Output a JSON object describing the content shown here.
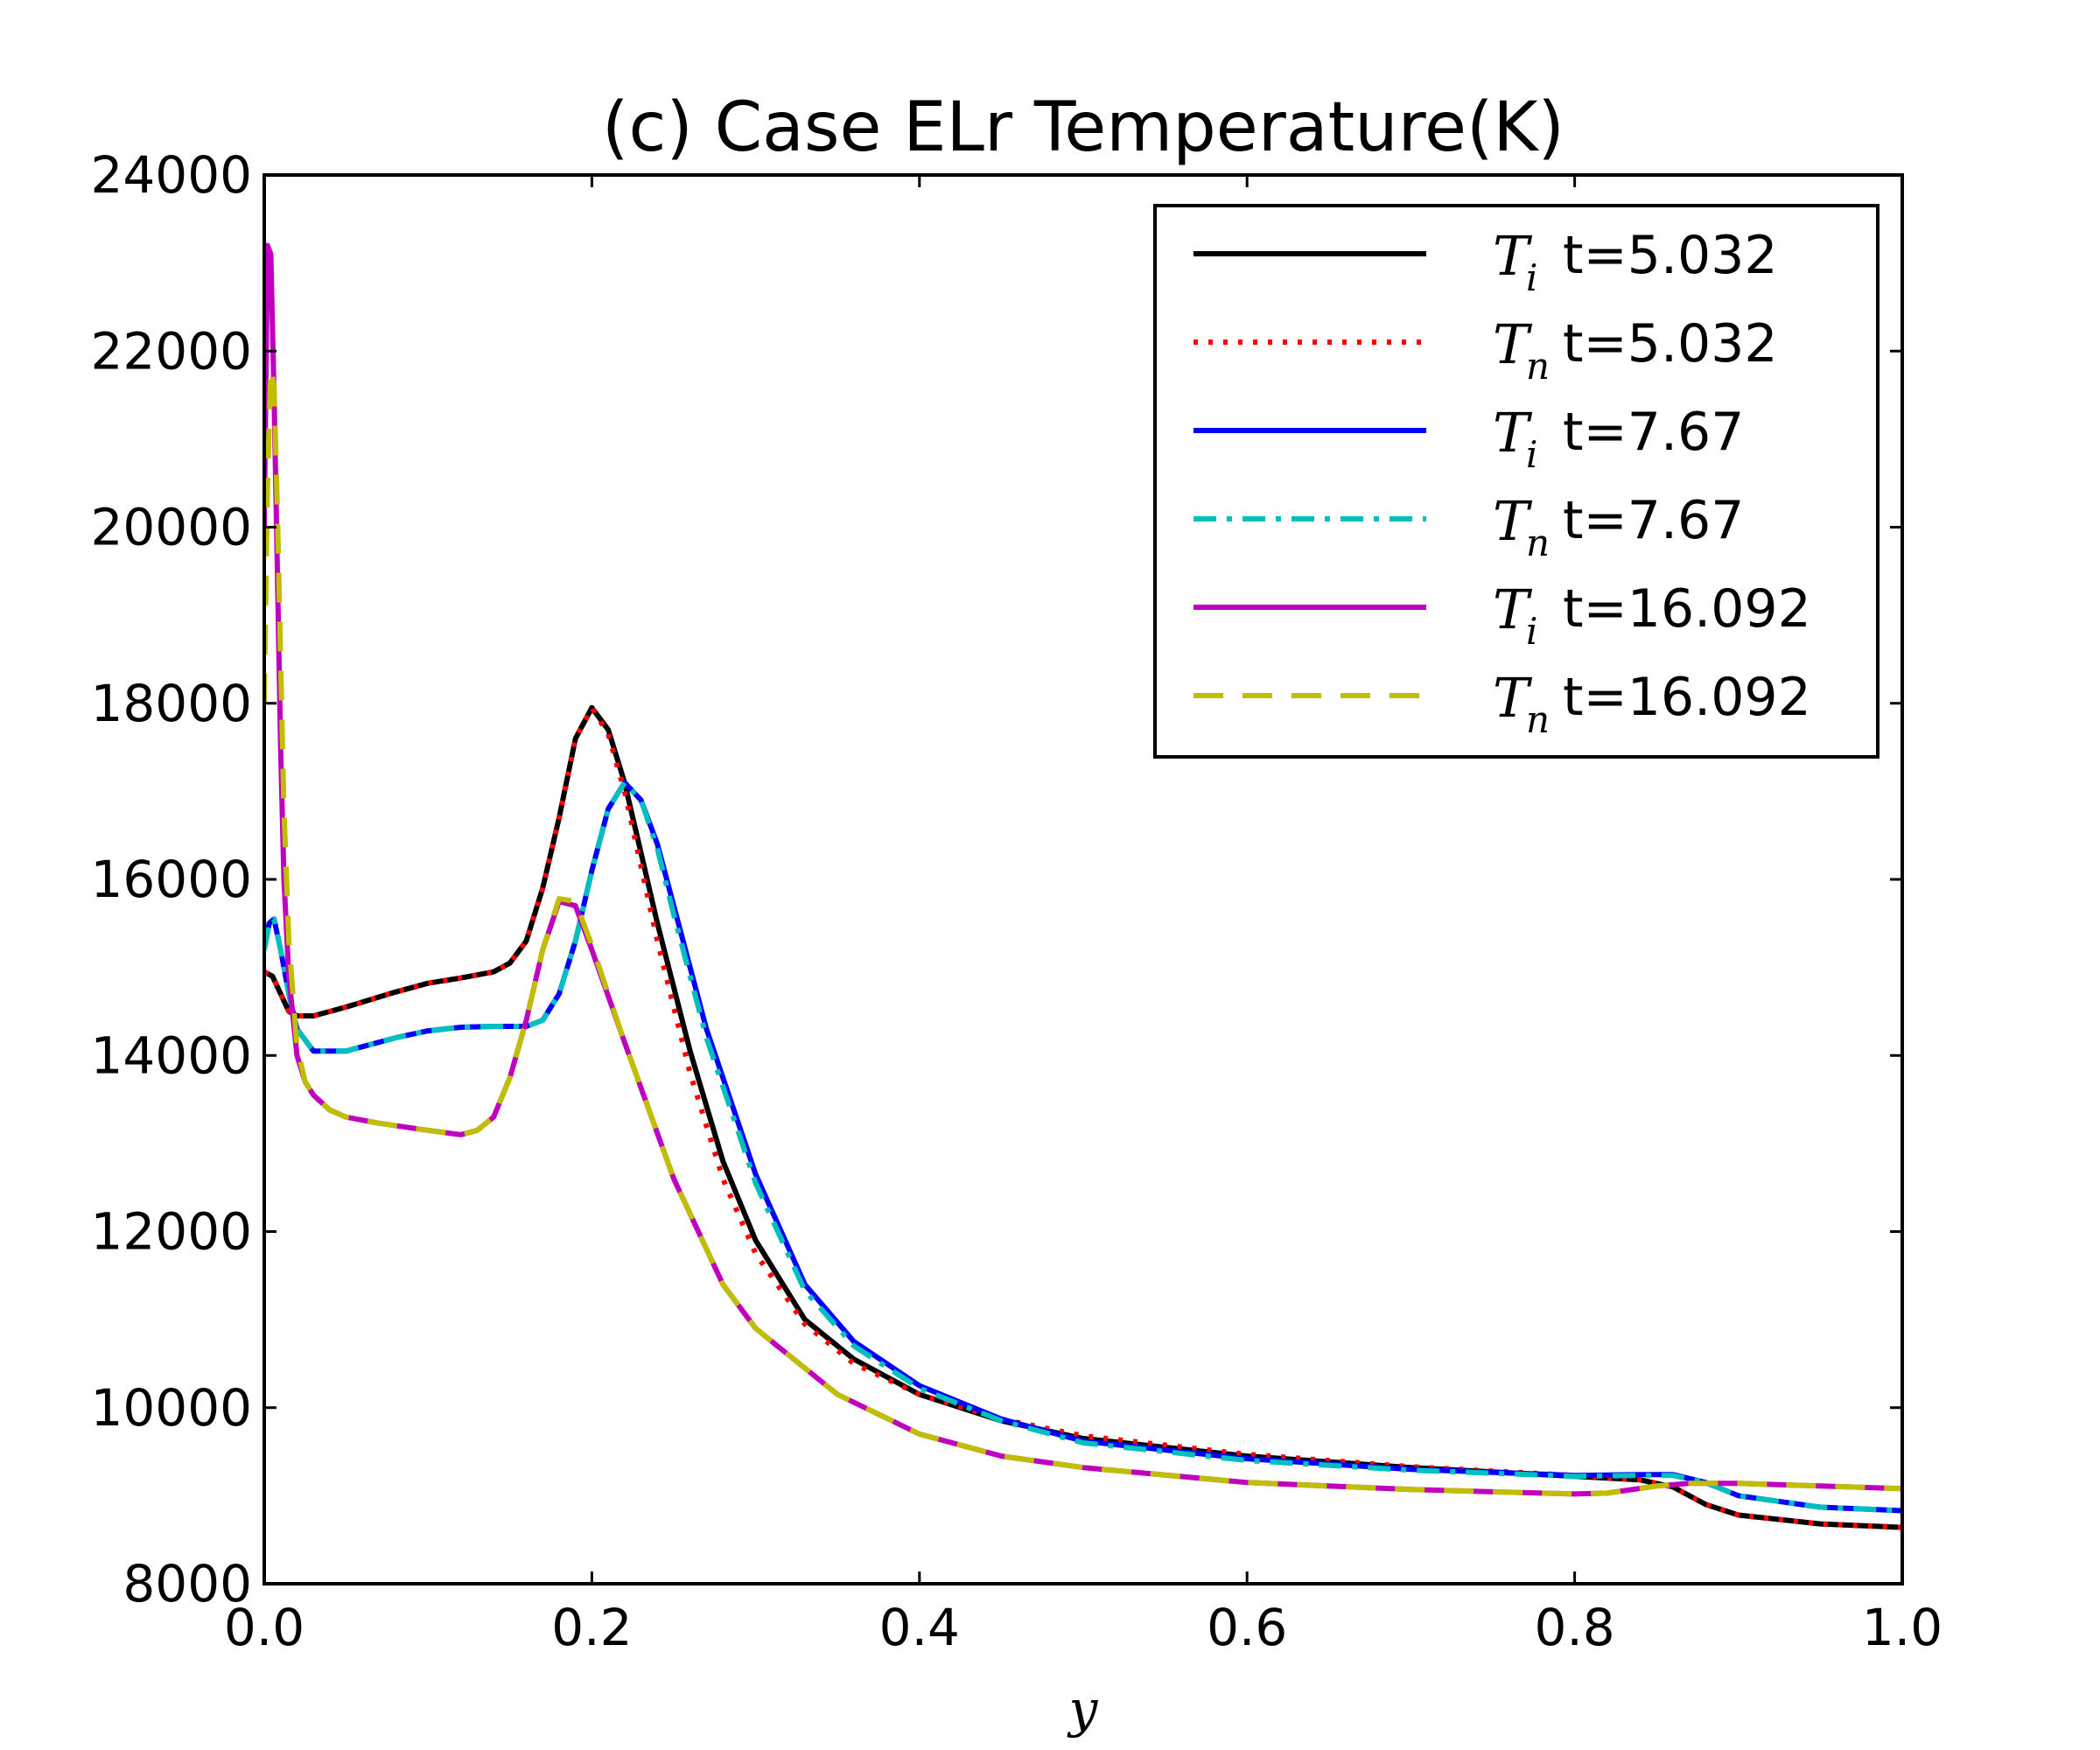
{
  "chart_data": {
    "type": "line",
    "title": "(c) Case ELr Temperature(K)",
    "xlabel": "y",
    "ylabel": "",
    "xlim": [
      0.0,
      1.0
    ],
    "ylim": [
      8000,
      24000
    ],
    "xticks": [
      "0.0",
      "0.2",
      "0.4",
      "0.6",
      "0.8",
      "1.0"
    ],
    "yticks": [
      "8000",
      "10000",
      "12000",
      "14000",
      "16000",
      "18000",
      "20000",
      "22000",
      "24000"
    ],
    "legend_position": "top-right",
    "series": [
      {
        "name": "T_i t=5.032",
        "symbol": "T",
        "subscript": "i",
        "label": "t=5.032",
        "color": "#000000",
        "style": "solid",
        "x": [
          0.0,
          0.005,
          0.01,
          0.015,
          0.02,
          0.03,
          0.05,
          0.08,
          0.1,
          0.12,
          0.14,
          0.15,
          0.16,
          0.17,
          0.18,
          0.19,
          0.2,
          0.21,
          0.22,
          0.23,
          0.24,
          0.26,
          0.28,
          0.3,
          0.33,
          0.36,
          0.4,
          0.45,
          0.5,
          0.6,
          0.7,
          0.8,
          0.84,
          0.86,
          0.88,
          0.9,
          0.95,
          1.0
        ],
        "y": [
          14950,
          14900,
          14700,
          14500,
          14450,
          14450,
          14550,
          14720,
          14820,
          14880,
          14950,
          15050,
          15300,
          15900,
          16700,
          17600,
          17950,
          17700,
          17100,
          16300,
          15500,
          14050,
          12800,
          11900,
          11000,
          10550,
          10150,
          9850,
          9650,
          9450,
          9320,
          9220,
          9180,
          9100,
          8900,
          8780,
          8680,
          8640
        ]
      },
      {
        "name": "T_n t=5.032",
        "symbol": "T",
        "subscript": "n",
        "label": "t=5.032",
        "color": "#ff0000",
        "style": "dotted",
        "x": [
          0.0,
          0.005,
          0.01,
          0.015,
          0.02,
          0.03,
          0.05,
          0.08,
          0.1,
          0.12,
          0.14,
          0.15,
          0.16,
          0.17,
          0.18,
          0.19,
          0.2,
          0.21,
          0.22,
          0.23,
          0.24,
          0.26,
          0.28,
          0.3,
          0.33,
          0.36,
          0.4,
          0.45,
          0.5,
          0.6,
          0.7,
          0.8,
          0.84,
          0.86,
          0.88,
          0.9,
          0.95,
          1.0
        ],
        "y": [
          14950,
          14900,
          14700,
          14500,
          14450,
          14450,
          14550,
          14720,
          14820,
          14880,
          14950,
          15050,
          15300,
          15900,
          16700,
          17600,
          17950,
          17650,
          17000,
          16150,
          15300,
          13800,
          12600,
          11750,
          10950,
          10500,
          10150,
          9870,
          9680,
          9470,
          9330,
          9230,
          9180,
          9100,
          8900,
          8780,
          8680,
          8640
        ]
      },
      {
        "name": "T_i t=7.67",
        "symbol": "T",
        "subscript": "i",
        "label": "t=7.67",
        "color": "#0000ff",
        "style": "solid",
        "x": [
          0.0,
          0.003,
          0.006,
          0.01,
          0.015,
          0.02,
          0.03,
          0.05,
          0.08,
          0.1,
          0.12,
          0.14,
          0.16,
          0.17,
          0.18,
          0.19,
          0.2,
          0.21,
          0.22,
          0.23,
          0.24,
          0.25,
          0.27,
          0.3,
          0.33,
          0.36,
          0.4,
          0.45,
          0.5,
          0.6,
          0.7,
          0.8,
          0.84,
          0.86,
          0.88,
          0.9,
          0.95,
          1.0
        ],
        "y": [
          15200,
          15500,
          15550,
          15200,
          14700,
          14300,
          14050,
          14050,
          14200,
          14280,
          14320,
          14330,
          14330,
          14400,
          14700,
          15300,
          16100,
          16800,
          17100,
          16900,
          16400,
          15700,
          14300,
          12650,
          11400,
          10750,
          10250,
          9870,
          9620,
          9420,
          9300,
          9230,
          9240,
          9240,
          9150,
          9000,
          8870,
          8830
        ]
      },
      {
        "name": "T_n t=7.67",
        "symbol": "T",
        "subscript": "n",
        "label": "t=7.67",
        "color": "#00bfbf",
        "style": "dashdot",
        "x": [
          0.0,
          0.003,
          0.006,
          0.01,
          0.015,
          0.02,
          0.03,
          0.05,
          0.08,
          0.1,
          0.12,
          0.14,
          0.16,
          0.17,
          0.18,
          0.19,
          0.2,
          0.21,
          0.22,
          0.23,
          0.24,
          0.25,
          0.27,
          0.3,
          0.33,
          0.36,
          0.4,
          0.45,
          0.5,
          0.6,
          0.7,
          0.8,
          0.84,
          0.86,
          0.88,
          0.9,
          0.95,
          1.0
        ],
        "y": [
          15200,
          15500,
          15550,
          15200,
          14700,
          14300,
          14050,
          14050,
          14200,
          14280,
          14320,
          14330,
          14330,
          14400,
          14700,
          15300,
          16100,
          16800,
          17100,
          16900,
          16350,
          15600,
          14200,
          12550,
          11330,
          10700,
          10220,
          9850,
          9600,
          9400,
          9290,
          9220,
          9230,
          9230,
          9150,
          9000,
          8870,
          8830
        ]
      },
      {
        "name": "T_i t=16.092",
        "symbol": "T",
        "subscript": "i",
        "label": "t=16.092",
        "color": "#bf00bf",
        "style": "solid",
        "x": [
          0.0,
          0.002,
          0.004,
          0.006,
          0.008,
          0.01,
          0.012,
          0.015,
          0.02,
          0.025,
          0.03,
          0.04,
          0.05,
          0.07,
          0.1,
          0.12,
          0.13,
          0.14,
          0.15,
          0.16,
          0.17,
          0.18,
          0.19,
          0.2,
          0.22,
          0.25,
          0.28,
          0.3,
          0.35,
          0.4,
          0.45,
          0.5,
          0.6,
          0.7,
          0.8,
          0.82,
          0.85,
          0.87,
          0.9,
          0.95,
          1.0
        ],
        "y": [
          20000,
          23200,
          23100,
          21500,
          19500,
          17500,
          16000,
          14900,
          14000,
          13700,
          13550,
          13380,
          13300,
          13230,
          13150,
          13100,
          13150,
          13300,
          13750,
          14400,
          15200,
          15750,
          15700,
          15200,
          14150,
          12600,
          11400,
          10900,
          10150,
          9700,
          9450,
          9320,
          9150,
          9070,
          9020,
          9030,
          9110,
          9140,
          9140,
          9110,
          9080
        ]
      },
      {
        "name": "T_n t=16.092",
        "symbol": "T",
        "subscript": "n",
        "label": "t=16.092",
        "color": "#bfbf00",
        "style": "dashed",
        "x": [
          0.0,
          0.002,
          0.004,
          0.006,
          0.008,
          0.01,
          0.012,
          0.015,
          0.02,
          0.025,
          0.03,
          0.04,
          0.05,
          0.07,
          0.1,
          0.12,
          0.13,
          0.14,
          0.15,
          0.16,
          0.17,
          0.18,
          0.19,
          0.2,
          0.22,
          0.25,
          0.28,
          0.3,
          0.35,
          0.4,
          0.45,
          0.5,
          0.6,
          0.7,
          0.8,
          0.82,
          0.85,
          0.87,
          0.9,
          0.95,
          1.0
        ],
        "y": [
          18000,
          20500,
          21800,
          21600,
          20200,
          18500,
          16800,
          15300,
          14100,
          13700,
          13550,
          13380,
          13300,
          13230,
          13150,
          13100,
          13150,
          13300,
          13750,
          14400,
          15200,
          15780,
          15750,
          15250,
          14150,
          12600,
          11400,
          10900,
          10150,
          9700,
          9450,
          9320,
          9150,
          9070,
          9020,
          9030,
          9110,
          9140,
          9140,
          9110,
          9080
        ]
      }
    ]
  }
}
